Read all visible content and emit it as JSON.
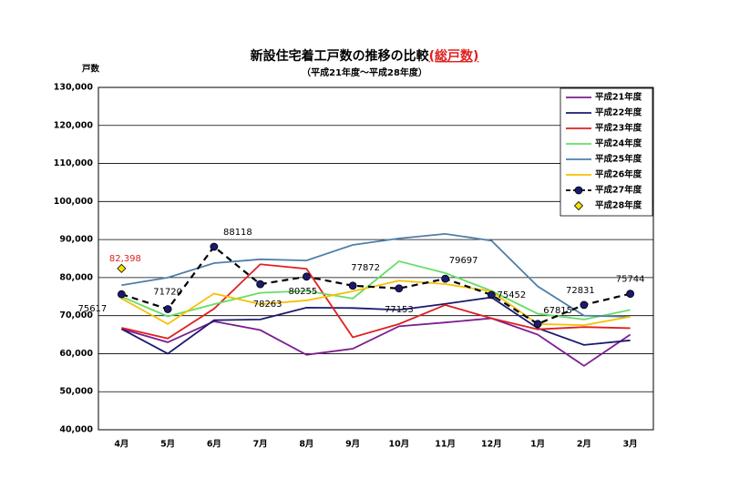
{
  "chart_data": {
    "type": "line",
    "title": "新設住宅着工戸数の推移の比較",
    "title_highlight": "(総戸数)",
    "subtitle": "（平成21年度～平成28年度）",
    "y_label": "戸数",
    "categories": [
      "4月",
      "5月",
      "6月",
      "7月",
      "8月",
      "9月",
      "10月",
      "11月",
      "12月",
      "1月",
      "2月",
      "3月"
    ],
    "ylim": [
      40000,
      130000
    ],
    "yticks": [
      {
        "value": 40000,
        "label": "40,000"
      },
      {
        "value": 50000,
        "label": "50,000"
      },
      {
        "value": 60000,
        "label": "60,000"
      },
      {
        "value": 70000,
        "label": "70,000"
      },
      {
        "value": 80000,
        "label": "80,000"
      },
      {
        "value": 90000,
        "label": "90,000"
      },
      {
        "value": 100000,
        "label": "100,000"
      },
      {
        "value": 110000,
        "label": "110,000"
      },
      {
        "value": 120000,
        "label": "120,000"
      },
      {
        "value": 130000,
        "label": "130,000"
      }
    ],
    "grid": true,
    "legend": "upper right",
    "series": [
      {
        "name": "平成21年度",
        "color": "#7b1f8f",
        "values": [
          66500,
          63000,
          68500,
          66200,
          59700,
          61300,
          67200,
          68200,
          69300,
          65000,
          56800,
          65000
        ]
      },
      {
        "name": "平成22年度",
        "color": "#1a1a6e",
        "values": [
          66500,
          60000,
          68800,
          69000,
          72100,
          72000,
          71500,
          73100,
          74800,
          66700,
          62300,
          63500
        ]
      },
      {
        "name": "平成23年度",
        "color": "#e02020",
        "values": [
          66800,
          64000,
          71800,
          83500,
          82300,
          64300,
          67800,
          72800,
          69300,
          66400,
          67000,
          66700
        ]
      },
      {
        "name": "平成24年度",
        "color": "#66dd66",
        "values": [
          75000,
          69800,
          73000,
          76000,
          76500,
          74500,
          84300,
          81200,
          76500,
          70500,
          69000,
          71500
        ]
      },
      {
        "name": "平成25年度",
        "color": "#4f7fa8",
        "values": [
          78000,
          80000,
          83800,
          84800,
          84500,
          88600,
          90300,
          91500,
          89700,
          77700,
          70000,
          69700
        ]
      },
      {
        "name": "平成26年度",
        "color": "#f5c000",
        "values": [
          74500,
          67800,
          75800,
          73000,
          74000,
          76400,
          79200,
          78300,
          76400,
          67800,
          67500,
          69700
        ]
      },
      {
        "name": "平成27年度",
        "color": "#000000",
        "dashed": true,
        "marker": "circle",
        "marker_color": "#1a1a6e",
        "label_color": "#000000",
        "values": [
          75617,
          71720,
          88118,
          78263,
          80255,
          77872,
          77153,
          79697,
          75452,
          67815,
          72831,
          75744
        ],
        "value_labels": [
          "75617",
          "71720",
          "88118",
          "78263",
          "80255",
          "77872",
          "77153",
          "79697",
          "75452",
          "67815",
          "72831",
          "75744"
        ]
      },
      {
        "name": "平成28年度",
        "color": "#000000",
        "marker": "diamond",
        "marker_color": "#f5e000",
        "label_color": "#e02020",
        "values": [
          82398,
          null,
          null,
          null,
          null,
          null,
          null,
          null,
          null,
          null,
          null,
          null
        ],
        "value_labels": [
          "82,398",
          null,
          null,
          null,
          null,
          null,
          null,
          null,
          null,
          null,
          null,
          null
        ]
      }
    ]
  }
}
